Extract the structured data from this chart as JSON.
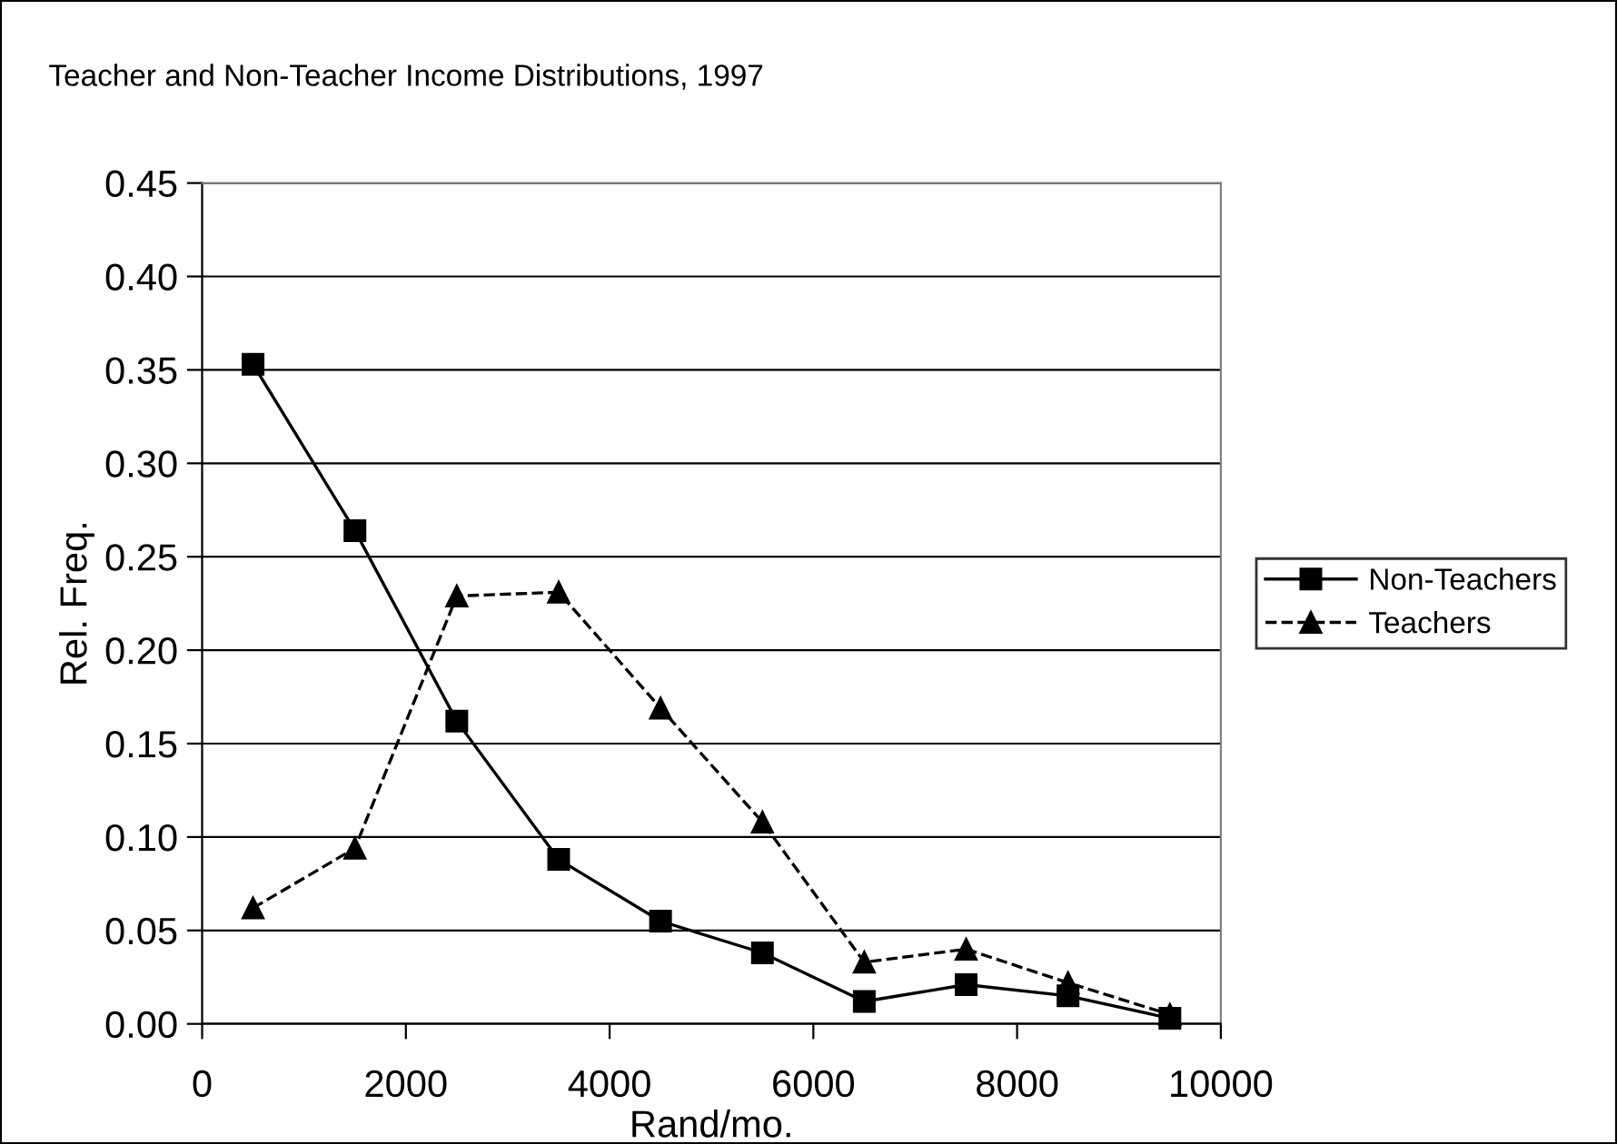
{
  "chart_data": {
    "type": "line",
    "title": "Teacher and Non-Teacher Income Distributions, 1997",
    "xlabel": "Rand/mo.",
    "ylabel": "Rel. Freq.",
    "x": [
      500,
      1500,
      2500,
      3500,
      4500,
      5500,
      6500,
      7500,
      8500,
      9500
    ],
    "series": [
      {
        "name": "Non-Teachers",
        "color": "#000000",
        "marker": "square",
        "line_style": "solid",
        "values": [
          0.353,
          0.264,
          0.162,
          0.088,
          0.055,
          0.038,
          0.012,
          0.021,
          0.015,
          0.003
        ]
      },
      {
        "name": "Teachers",
        "color": "#000000",
        "marker": "triangle",
        "line_style": "dashed",
        "values": [
          0.062,
          0.094,
          0.229,
          0.231,
          0.169,
          0.108,
          0.033,
          0.04,
          0.022,
          0.005
        ]
      }
    ],
    "xlim": [
      0,
      10000
    ],
    "xticks": [
      0,
      2000,
      4000,
      6000,
      8000,
      10000
    ],
    "ylim": [
      0,
      0.45
    ],
    "yticks": [
      {
        "value": 0,
        "label": "0.00"
      },
      {
        "value": 0.05,
        "label": "0.05"
      },
      {
        "value": 0.1,
        "label": "0.10"
      },
      {
        "value": 0.15,
        "label": "0.15"
      },
      {
        "value": 0.2,
        "label": "0.20"
      },
      {
        "value": 0.25,
        "label": "0.25"
      },
      {
        "value": 0.3,
        "label": "0.30"
      },
      {
        "value": 0.35,
        "label": "0.35"
      },
      {
        "value": 0.4,
        "label": "0.40"
      },
      {
        "value": 0.45,
        "label": "0.45"
      }
    ],
    "grid": "y",
    "legend": "right"
  }
}
